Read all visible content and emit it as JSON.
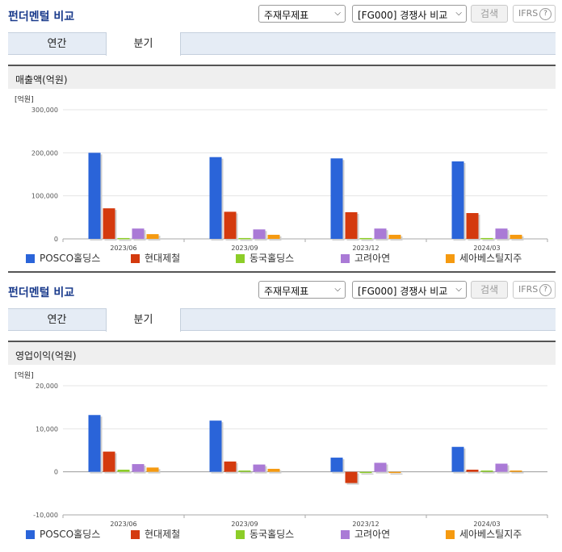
{
  "panels": [
    {
      "title": "펀더멘털 비교",
      "select_statement": "주재무제표",
      "select_compare": "[FG000] 경쟁사 비교",
      "search_label": "검색",
      "ifrs_label": "IFRS",
      "help_glyph": "?",
      "tabs": [
        "연간",
        "분기"
      ],
      "active_tab": "분기",
      "section_title": "매출액(억원)"
    },
    {
      "title": "펀더멘털 비교",
      "select_statement": "주재무제표",
      "select_compare": "[FG000] 경쟁사 비교",
      "search_label": "검색",
      "ifrs_label": "IFRS",
      "help_glyph": "?",
      "tabs": [
        "연간",
        "분기"
      ],
      "active_tab": "분기",
      "section_title": "영업이익(억원)"
    }
  ],
  "colors": {
    "title": "#1a3b8c",
    "series": [
      "#2a64d9",
      "#d43a0e",
      "#8ccd28",
      "#aa7ad6",
      "#f59a10"
    ]
  },
  "chart_data": [
    {
      "type": "bar",
      "unit_label": "[억원]",
      "categories": [
        "2023/06",
        "2023/09",
        "2023/12",
        "2024/03"
      ],
      "ylim": [
        0,
        300000
      ],
      "yticks": [
        0,
        100000,
        200000,
        300000
      ],
      "ytick_labels": [
        "0",
        "100,000",
        "200,000",
        "300,000"
      ],
      "grid": true,
      "legend_position": "bottom",
      "series": [
        {
          "name": "POSCO홀딩스",
          "values": [
            200000,
            190000,
            187000,
            180000
          ]
        },
        {
          "name": "현대제철",
          "values": [
            71000,
            63000,
            62000,
            60000
          ]
        },
        {
          "name": "동국홀딩스",
          "values": [
            2000,
            2000,
            2000,
            2000
          ]
        },
        {
          "name": "고려아연",
          "values": [
            24000,
            22000,
            24000,
            24000
          ]
        },
        {
          "name": "세아베스틸지주",
          "values": [
            11000,
            9500,
            9500,
            9500
          ]
        }
      ]
    },
    {
      "type": "bar",
      "unit_label": "[억원]",
      "categories": [
        "2023/06",
        "2023/09",
        "2023/12",
        "2024/03"
      ],
      "ylim": [
        -10000,
        20000
      ],
      "yticks": [
        -10000,
        0,
        10000,
        20000
      ],
      "ytick_labels": [
        "-10,000",
        "0",
        "10,000",
        "20,000"
      ],
      "grid": true,
      "legend_position": "bottom",
      "series": [
        {
          "name": "POSCO홀딩스",
          "values": [
            13200,
            11900,
            3300,
            5800
          ]
        },
        {
          "name": "현대제철",
          "values": [
            4700,
            2400,
            -2600,
            500
          ]
        },
        {
          "name": "동국홀딩스",
          "values": [
            500,
            300,
            0,
            300
          ]
        },
        {
          "name": "고려아연",
          "values": [
            1800,
            1700,
            2100,
            1900
          ]
        },
        {
          "name": "세아베스틸지주",
          "values": [
            1000,
            700,
            0,
            300
          ]
        }
      ]
    }
  ]
}
